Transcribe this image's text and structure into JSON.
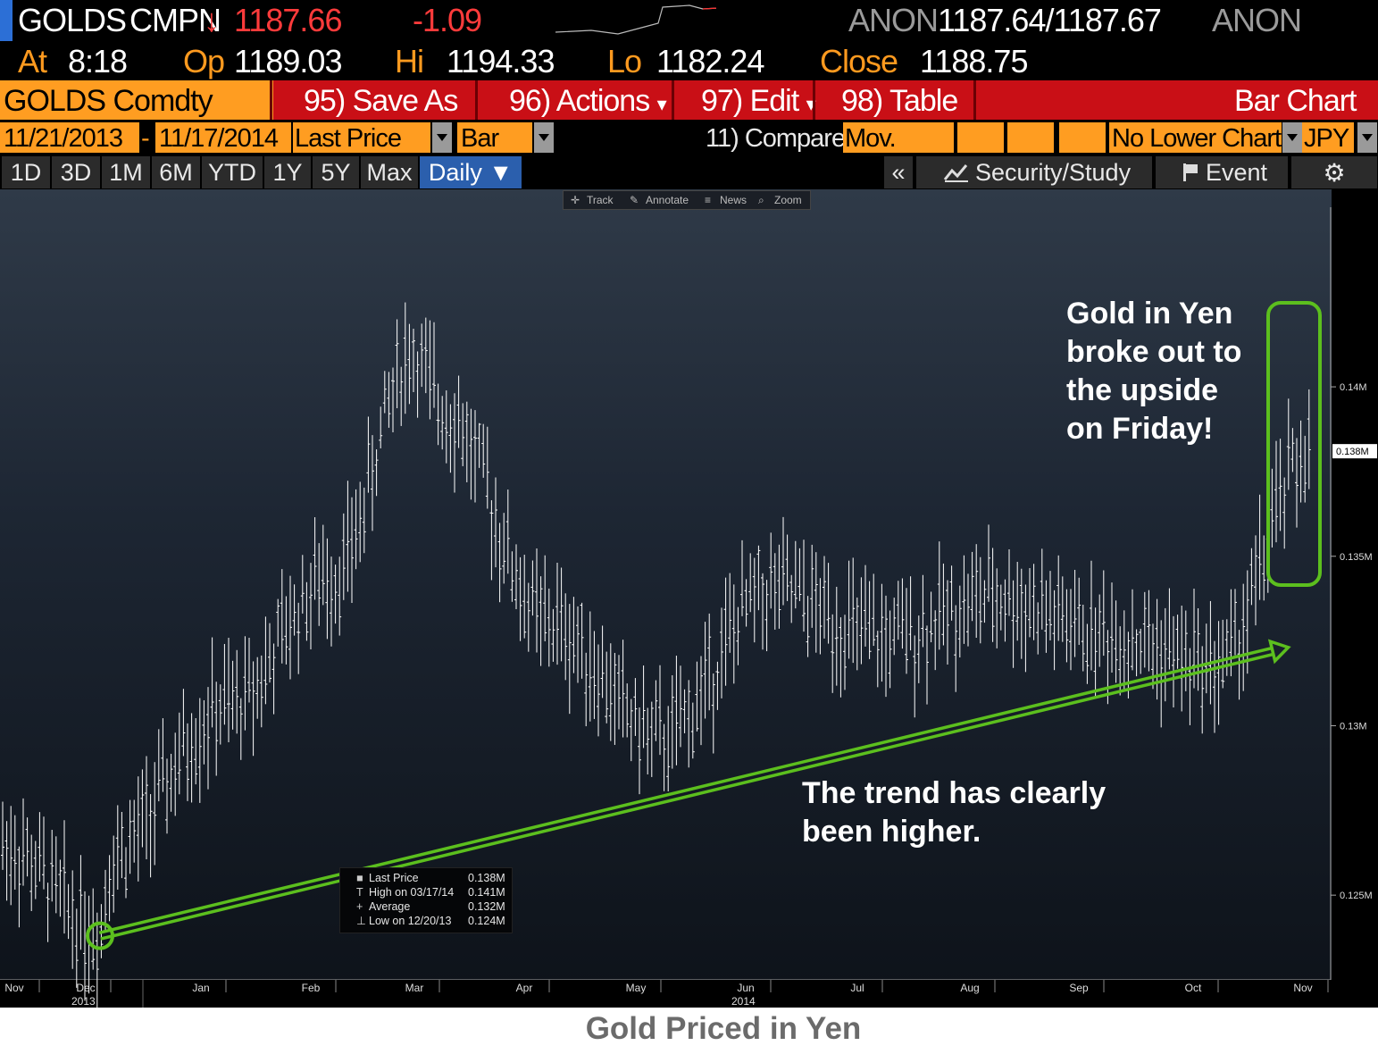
{
  "header": {
    "ticker": "GOLDS",
    "source": "CMPN",
    "arrow": "↓",
    "last": "1187.66",
    "change": "-1.09",
    "quote_source": "ANON",
    "bid_ask": "1187.64/1187.67",
    "quote_source2": "ANON",
    "at_label": "At",
    "at_time": "8:18",
    "open_label": "Op",
    "open": "1189.03",
    "high_label": "Hi",
    "high": "1194.33",
    "low_label": "Lo",
    "low": "1182.24",
    "close_label": "Close",
    "close": "1188.75"
  },
  "menu": {
    "security": "GOLDS Comdty",
    "save_as": "95) Save As",
    "actions": "96) Actions",
    "edit": "97) Edit",
    "table": "98) Table",
    "view_title": "Bar Chart",
    "arrow_glyph": "▾"
  },
  "params": {
    "start_date": "11/21/2013",
    "dash": "-",
    "end_date": "11/17/2014",
    "field": "Last Price",
    "chart_style": "Bar",
    "compare": "11) Compare",
    "mov_avgs": "Mov. Avgs",
    "lower_chart": "No Lower Chart",
    "currency": "JPY"
  },
  "periods": [
    "1D",
    "3D",
    "1M",
    "6M",
    "YTD",
    "1Y",
    "5Y",
    "Max"
  ],
  "frequency": "Daily ▼",
  "side": {
    "collapse": "«",
    "security_study": "Security/Study",
    "event": "Event"
  },
  "tools": {
    "track": "Track",
    "annotate": "Annotate",
    "news": "News",
    "zoom": "Zoom"
  },
  "legend": {
    "rows": [
      {
        "name": "Last Price",
        "value": "0.138M",
        "icon": "■"
      },
      {
        "name": "High on 03/17/14",
        "value": "0.141M",
        "icon": "T"
      },
      {
        "name": "Average",
        "value": "0.132M",
        "icon": "+"
      },
      {
        "name": "Low on 12/20/13",
        "value": "0.124M",
        "icon": "⊥"
      }
    ]
  },
  "annotations": {
    "breakout": [
      "Gold in Yen",
      "broke out to",
      "the upside",
      "on Friday!"
    ],
    "trend": [
      "The trend has clearly",
      "been higher."
    ]
  },
  "caption": "Gold Priced in Yen",
  "colors": {
    "accent_green": "#5cbf1e",
    "bar": "#ffffff",
    "menu_red": "#c90f16",
    "menu_orange": "#ff9d21"
  },
  "chart_data": {
    "type": "bar",
    "title": "",
    "x_tick_labels": [
      "Nov",
      "Dec",
      "Jan",
      "Feb",
      "Mar",
      "Apr",
      "May",
      "Jun",
      "Jul",
      "Aug",
      "Sep",
      "Oct",
      "Nov"
    ],
    "x_year_labels": [
      {
        "label": "2013",
        "under": "Dec"
      },
      {
        "label": "2014",
        "under": "Jun"
      }
    ],
    "y_tick_labels": [
      "0.125M",
      "0.13M",
      "0.135M",
      "0.14M"
    ],
    "y_ticks": [
      0.125,
      0.13,
      0.135,
      0.14
    ],
    "ylim": [
      0.1225,
      0.1453
    ],
    "last_value_label": "0.138M",
    "last_value": 0.1381,
    "summary": {
      "last": 0.138,
      "high": 0.141,
      "average": 0.132,
      "low": 0.124
    },
    "trendline": {
      "from": {
        "date": "2013-12-20",
        "value": 0.1238
      },
      "to": {
        "date": "2014-11-10",
        "value": 0.1322
      }
    },
    "monthly_closes": [
      {
        "month": "2013-11",
        "value": 0.1265
      },
      {
        "month": "2013-12",
        "value": 0.1262
      },
      {
        "month": "2014-01",
        "value": 0.1305
      },
      {
        "month": "2014-02",
        "value": 0.1345
      },
      {
        "month": "2014-03",
        "value": 0.1395
      },
      {
        "month": "2014-04",
        "value": 0.133
      },
      {
        "month": "2014-05",
        "value": 0.1296
      },
      {
        "month": "2014-06",
        "value": 0.134
      },
      {
        "month": "2014-07",
        "value": 0.1325
      },
      {
        "month": "2014-08",
        "value": 0.1338
      },
      {
        "month": "2014-09",
        "value": 0.1327
      },
      {
        "month": "2014-10",
        "value": 0.1318
      },
      {
        "month": "2014-11",
        "value": 0.1381
      }
    ]
  }
}
